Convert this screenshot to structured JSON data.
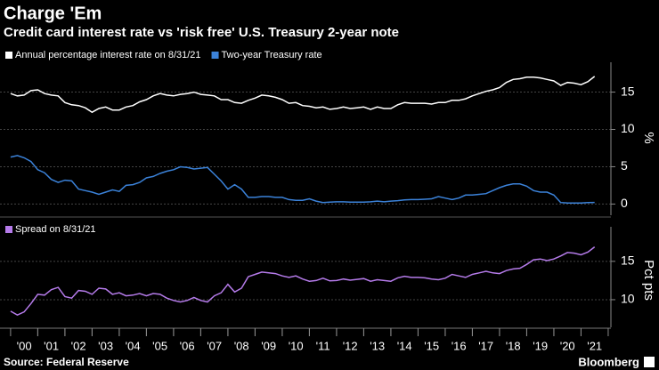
{
  "header": {
    "title": "Charge 'Em",
    "subtitle": "Credit card interest rate vs 'risk free' U.S. Treasury 2-year note"
  },
  "footer": {
    "source": "Source: Federal Reserve",
    "brand": "Bloomberg"
  },
  "chart_data": [
    {
      "type": "line",
      "y_label": "%",
      "x": [
        2000,
        2000.25,
        2000.5,
        2000.75,
        2001,
        2001.25,
        2001.5,
        2001.75,
        2002,
        2002.25,
        2002.5,
        2002.75,
        2003,
        2003.25,
        2003.5,
        2003.75,
        2004,
        2004.25,
        2004.5,
        2004.75,
        2005,
        2005.25,
        2005.5,
        2005.75,
        2006,
        2006.25,
        2006.5,
        2006.75,
        2007,
        2007.25,
        2007.5,
        2007.75,
        2008,
        2008.25,
        2008.5,
        2008.75,
        2009,
        2009.25,
        2009.5,
        2009.75,
        2010,
        2010.25,
        2010.5,
        2010.75,
        2011,
        2011.25,
        2011.5,
        2011.75,
        2012,
        2012.25,
        2012.5,
        2012.75,
        2013,
        2013.25,
        2013.5,
        2013.75,
        2014,
        2014.25,
        2014.5,
        2014.75,
        2015,
        2015.25,
        2015.5,
        2015.75,
        2016,
        2016.25,
        2016.5,
        2016.75,
        2017,
        2017.25,
        2017.5,
        2017.75,
        2018,
        2018.25,
        2018.5,
        2018.75,
        2019,
        2019.25,
        2019.5,
        2019.75,
        2020,
        2020.25,
        2020.5,
        2020.75,
        2021,
        2021.25,
        2021.5
      ],
      "series": [
        {
          "name": "Annual percentage interest rate on 8/31/21",
          "color": "#ffffff",
          "values": [
            14.8,
            14.5,
            14.6,
            15.2,
            15.3,
            14.8,
            14.6,
            14.5,
            13.6,
            13.3,
            13.2,
            12.9,
            12.3,
            12.8,
            13.0,
            12.6,
            12.6,
            13.0,
            13.2,
            13.7,
            14.0,
            14.5,
            14.8,
            14.6,
            14.5,
            14.7,
            14.8,
            15.0,
            14.7,
            14.6,
            14.5,
            14.0,
            14.0,
            13.6,
            13.5,
            13.9,
            14.2,
            14.6,
            14.5,
            14.3,
            14.0,
            13.5,
            13.6,
            13.2,
            13.1,
            12.9,
            13.0,
            12.7,
            12.8,
            13.0,
            12.8,
            12.9,
            13.0,
            12.7,
            13.0,
            12.8,
            12.8,
            13.3,
            13.6,
            13.5,
            13.5,
            13.5,
            13.4,
            13.6,
            13.6,
            13.9,
            13.9,
            14.1,
            14.5,
            14.8,
            15.1,
            15.3,
            15.6,
            16.3,
            16.7,
            16.8,
            17.0,
            17.0,
            16.9,
            16.7,
            16.5,
            15.9,
            16.3,
            16.2,
            16.0,
            16.4,
            17.1
          ]
        },
        {
          "name": "Two-year Treasury rate",
          "color": "#3b82d9",
          "values": [
            6.3,
            6.5,
            6.2,
            5.7,
            4.6,
            4.2,
            3.3,
            2.9,
            3.2,
            3.1,
            2.0,
            1.8,
            1.6,
            1.3,
            1.6,
            1.9,
            1.7,
            2.5,
            2.6,
            2.9,
            3.5,
            3.7,
            4.1,
            4.4,
            4.6,
            5.0,
            4.9,
            4.7,
            4.8,
            4.9,
            4.0,
            3.1,
            2.0,
            2.6,
            2.0,
            0.9,
            0.9,
            1.0,
            1.0,
            0.9,
            0.9,
            0.6,
            0.5,
            0.5,
            0.7,
            0.4,
            0.2,
            0.25,
            0.3,
            0.3,
            0.25,
            0.25,
            0.25,
            0.3,
            0.4,
            0.3,
            0.4,
            0.45,
            0.55,
            0.6,
            0.6,
            0.65,
            0.7,
            1.0,
            0.8,
            0.6,
            0.8,
            1.2,
            1.2,
            1.3,
            1.4,
            1.8,
            2.2,
            2.5,
            2.7,
            2.7,
            2.4,
            1.8,
            1.6,
            1.6,
            1.2,
            0.2,
            0.15,
            0.13,
            0.15,
            0.2,
            0.22
          ]
        }
      ],
      "ylim": [
        -1.5,
        19
      ],
      "yticks": [
        0,
        5,
        10,
        15
      ],
      "xlim": [
        1999.61,
        2022.1
      ],
      "grid": true
    },
    {
      "type": "line",
      "y_label": "Pct pts",
      "x": [
        2000,
        2000.25,
        2000.5,
        2000.75,
        2001,
        2001.25,
        2001.5,
        2001.75,
        2002,
        2002.25,
        2002.5,
        2002.75,
        2003,
        2003.25,
        2003.5,
        2003.75,
        2004,
        2004.25,
        2004.5,
        2004.75,
        2005,
        2005.25,
        2005.5,
        2005.75,
        2006,
        2006.25,
        2006.5,
        2006.75,
        2007,
        2007.25,
        2007.5,
        2007.75,
        2008,
        2008.25,
        2008.5,
        2008.75,
        2009,
        2009.25,
        2009.5,
        2009.75,
        2010,
        2010.25,
        2010.5,
        2010.75,
        2011,
        2011.25,
        2011.5,
        2011.75,
        2012,
        2012.25,
        2012.5,
        2012.75,
        2013,
        2013.25,
        2013.5,
        2013.75,
        2014,
        2014.25,
        2014.5,
        2014.75,
        2015,
        2015.25,
        2015.5,
        2015.75,
        2016,
        2016.25,
        2016.5,
        2016.75,
        2017,
        2017.25,
        2017.5,
        2017.75,
        2018,
        2018.25,
        2018.5,
        2018.75,
        2019,
        2019.25,
        2019.5,
        2019.75,
        2020,
        2020.25,
        2020.5,
        2020.75,
        2021,
        2021.25,
        2021.5
      ],
      "series": [
        {
          "name": "Spread on 8/31/21",
          "color": "#b57bea",
          "values": [
            8.5,
            8.0,
            8.4,
            9.5,
            10.7,
            10.6,
            11.3,
            11.6,
            10.4,
            10.2,
            11.2,
            11.1,
            10.7,
            11.5,
            11.4,
            10.7,
            10.9,
            10.5,
            10.6,
            10.8,
            10.5,
            10.8,
            10.7,
            10.2,
            9.9,
            9.7,
            9.9,
            10.3,
            9.9,
            9.7,
            10.5,
            10.9,
            12.0,
            11.0,
            11.5,
            13.0,
            13.3,
            13.6,
            13.5,
            13.4,
            13.1,
            12.9,
            13.1,
            12.7,
            12.4,
            12.5,
            12.8,
            12.45,
            12.5,
            12.7,
            12.55,
            12.65,
            12.75,
            12.4,
            12.6,
            12.5,
            12.4,
            12.85,
            13.05,
            12.9,
            12.9,
            12.85,
            12.7,
            12.6,
            12.8,
            13.3,
            13.1,
            12.9,
            13.3,
            13.5,
            13.7,
            13.5,
            13.4,
            13.8,
            14.0,
            14.1,
            14.6,
            15.2,
            15.3,
            15.1,
            15.3,
            15.7,
            16.15,
            16.07,
            15.85,
            16.2,
            16.88
          ]
        }
      ],
      "ylim": [
        6.4,
        19.5
      ],
      "yticks": [
        10,
        15
      ],
      "xlim": [
        1999.61,
        2022.1
      ],
      "grid": true,
      "xticks": [
        {
          "value": 2000.5,
          "label": "'00"
        },
        {
          "value": 2001.5,
          "label": "'01"
        },
        {
          "value": 2002.5,
          "label": "'02"
        },
        {
          "value": 2003.5,
          "label": "'03"
        },
        {
          "value": 2004.5,
          "label": "'04"
        },
        {
          "value": 2005.5,
          "label": "'05"
        },
        {
          "value": 2006.5,
          "label": "'06"
        },
        {
          "value": 2007.5,
          "label": "'07"
        },
        {
          "value": 2008.5,
          "label": "'08"
        },
        {
          "value": 2009.5,
          "label": "'09"
        },
        {
          "value": 2010.5,
          "label": "'10"
        },
        {
          "value": 2011.5,
          "label": "'11"
        },
        {
          "value": 2012.5,
          "label": "'12"
        },
        {
          "value": 2013.5,
          "label": "'13"
        },
        {
          "value": 2014.5,
          "label": "'14"
        },
        {
          "value": 2015.5,
          "label": "'15"
        },
        {
          "value": 2016.5,
          "label": "'16"
        },
        {
          "value": 2017.5,
          "label": "'17"
        },
        {
          "value": 2018.5,
          "label": "'18"
        },
        {
          "value": 2019.5,
          "label": "'19"
        },
        {
          "value": 2020.5,
          "label": "'20"
        },
        {
          "value": 2021.5,
          "label": "'21"
        }
      ]
    }
  ]
}
